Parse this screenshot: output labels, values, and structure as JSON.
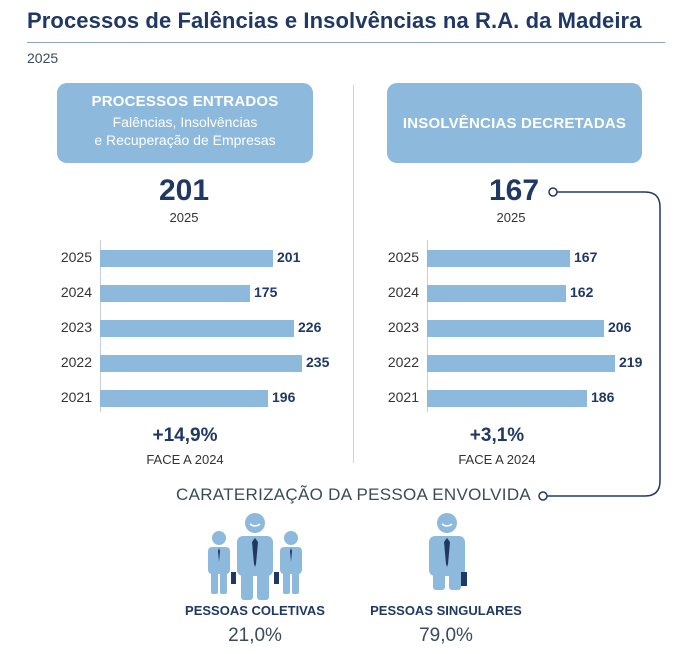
{
  "title": "Processos de Falências e Insolvências na R.A. da Madeira",
  "year": "2025",
  "colors": {
    "bar": "#8db9dc",
    "accent": "#1f3864",
    "divider": "#f0d38a"
  },
  "left_panel": {
    "heading": "PROCESSOS ENTRADOS",
    "sub1": "Falências, Insolvências",
    "sub2": "e Recuperação de Empresas",
    "big_value": "201",
    "big_year": "2025",
    "change": "+14,9%",
    "change_label": "FACE A 2024"
  },
  "right_panel": {
    "heading": "INSOLVÊNCIAS DECRETADAS",
    "big_value": "167",
    "big_year": "2025",
    "change": "+3,1%",
    "change_label": "FACE A 2024"
  },
  "chart_data": [
    {
      "type": "bar",
      "orientation": "horizontal",
      "title": "PROCESSOS ENTRADOS",
      "categories": [
        "2025",
        "2024",
        "2023",
        "2022",
        "2021"
      ],
      "values": [
        201,
        175,
        226,
        235,
        196
      ],
      "xlim": [
        0,
        235
      ]
    },
    {
      "type": "bar",
      "orientation": "horizontal",
      "title": "INSOLVÊNCIAS DECRETADAS",
      "categories": [
        "2025",
        "2024",
        "2023",
        "2022",
        "2021"
      ],
      "values": [
        167,
        162,
        206,
        219,
        186
      ],
      "xlim": [
        0,
        219
      ]
    }
  ],
  "characterization": {
    "title": "CARATERIZAÇÃO DA PESSOA ENVOLVIDA",
    "groups": [
      {
        "label": "PESSOAS COLETIVAS",
        "value": "21,0%",
        "icon": "group-of-people-icon"
      },
      {
        "label": "PESSOAS SINGULARES",
        "value": "79,0%",
        "icon": "person-icon"
      }
    ]
  }
}
